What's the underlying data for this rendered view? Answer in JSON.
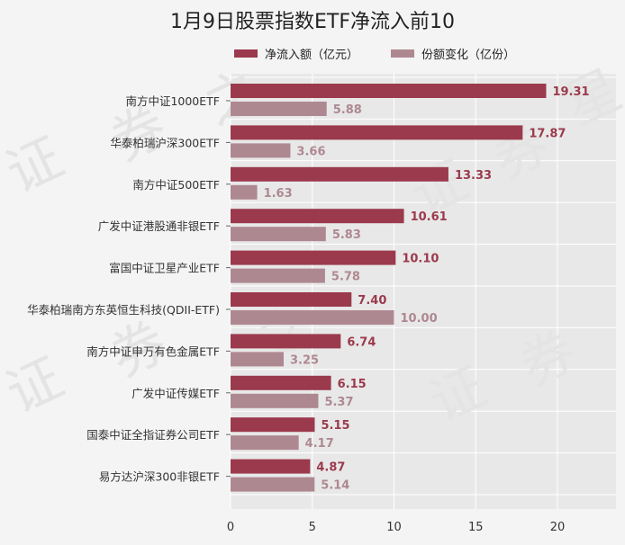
{
  "colors": {
    "series1": "#9b3a4c",
    "series2": "#ae8891",
    "label1": "#9b3a4c",
    "label2": "#ae8891",
    "plot_bg": "#e8e8e8",
    "grid": "#ffffff"
  },
  "chart_data": {
    "type": "bar",
    "orientation": "horizontal",
    "title": "1月9日股票指数ETF净流入前10",
    "categories": [
      "南方中证1000ETF",
      "华泰柏瑞沪深300ETF",
      "南方中证500ETF",
      "广发中证港股通非银ETF",
      "富国中证卫星产业ETF",
      "华泰柏瑞南方东英恒生科技(QDII-ETF)",
      "南方中证申万有色金属ETF",
      "广发中证传媒ETF",
      "国泰中证全指证券公司ETF",
      "易方达沪深300非银ETF"
    ],
    "series": [
      {
        "name": "净流入额（亿元）",
        "values": [
          19.31,
          17.87,
          13.33,
          10.61,
          10.1,
          7.4,
          6.74,
          6.15,
          5.15,
          4.87
        ],
        "labels": [
          "19.31",
          "17.87",
          "13.33",
          "10.61",
          "10.10",
          "7.40",
          "6.74",
          "6.15",
          "5.15",
          "4.87"
        ]
      },
      {
        "name": "份额变化（亿份）",
        "values": [
          5.88,
          3.66,
          1.63,
          5.83,
          5.78,
          10.0,
          3.25,
          5.37,
          4.17,
          5.14
        ],
        "labels": [
          "5.88",
          "3.66",
          "1.63",
          "5.83",
          "5.78",
          "10.00",
          "3.25",
          "5.37",
          "4.17",
          "5.14"
        ]
      }
    ],
    "xlim": [
      0,
      23.5
    ],
    "xticks": [
      "0",
      "5",
      "10",
      "15",
      "20"
    ],
    "grid": true,
    "legend_position": "top"
  }
}
